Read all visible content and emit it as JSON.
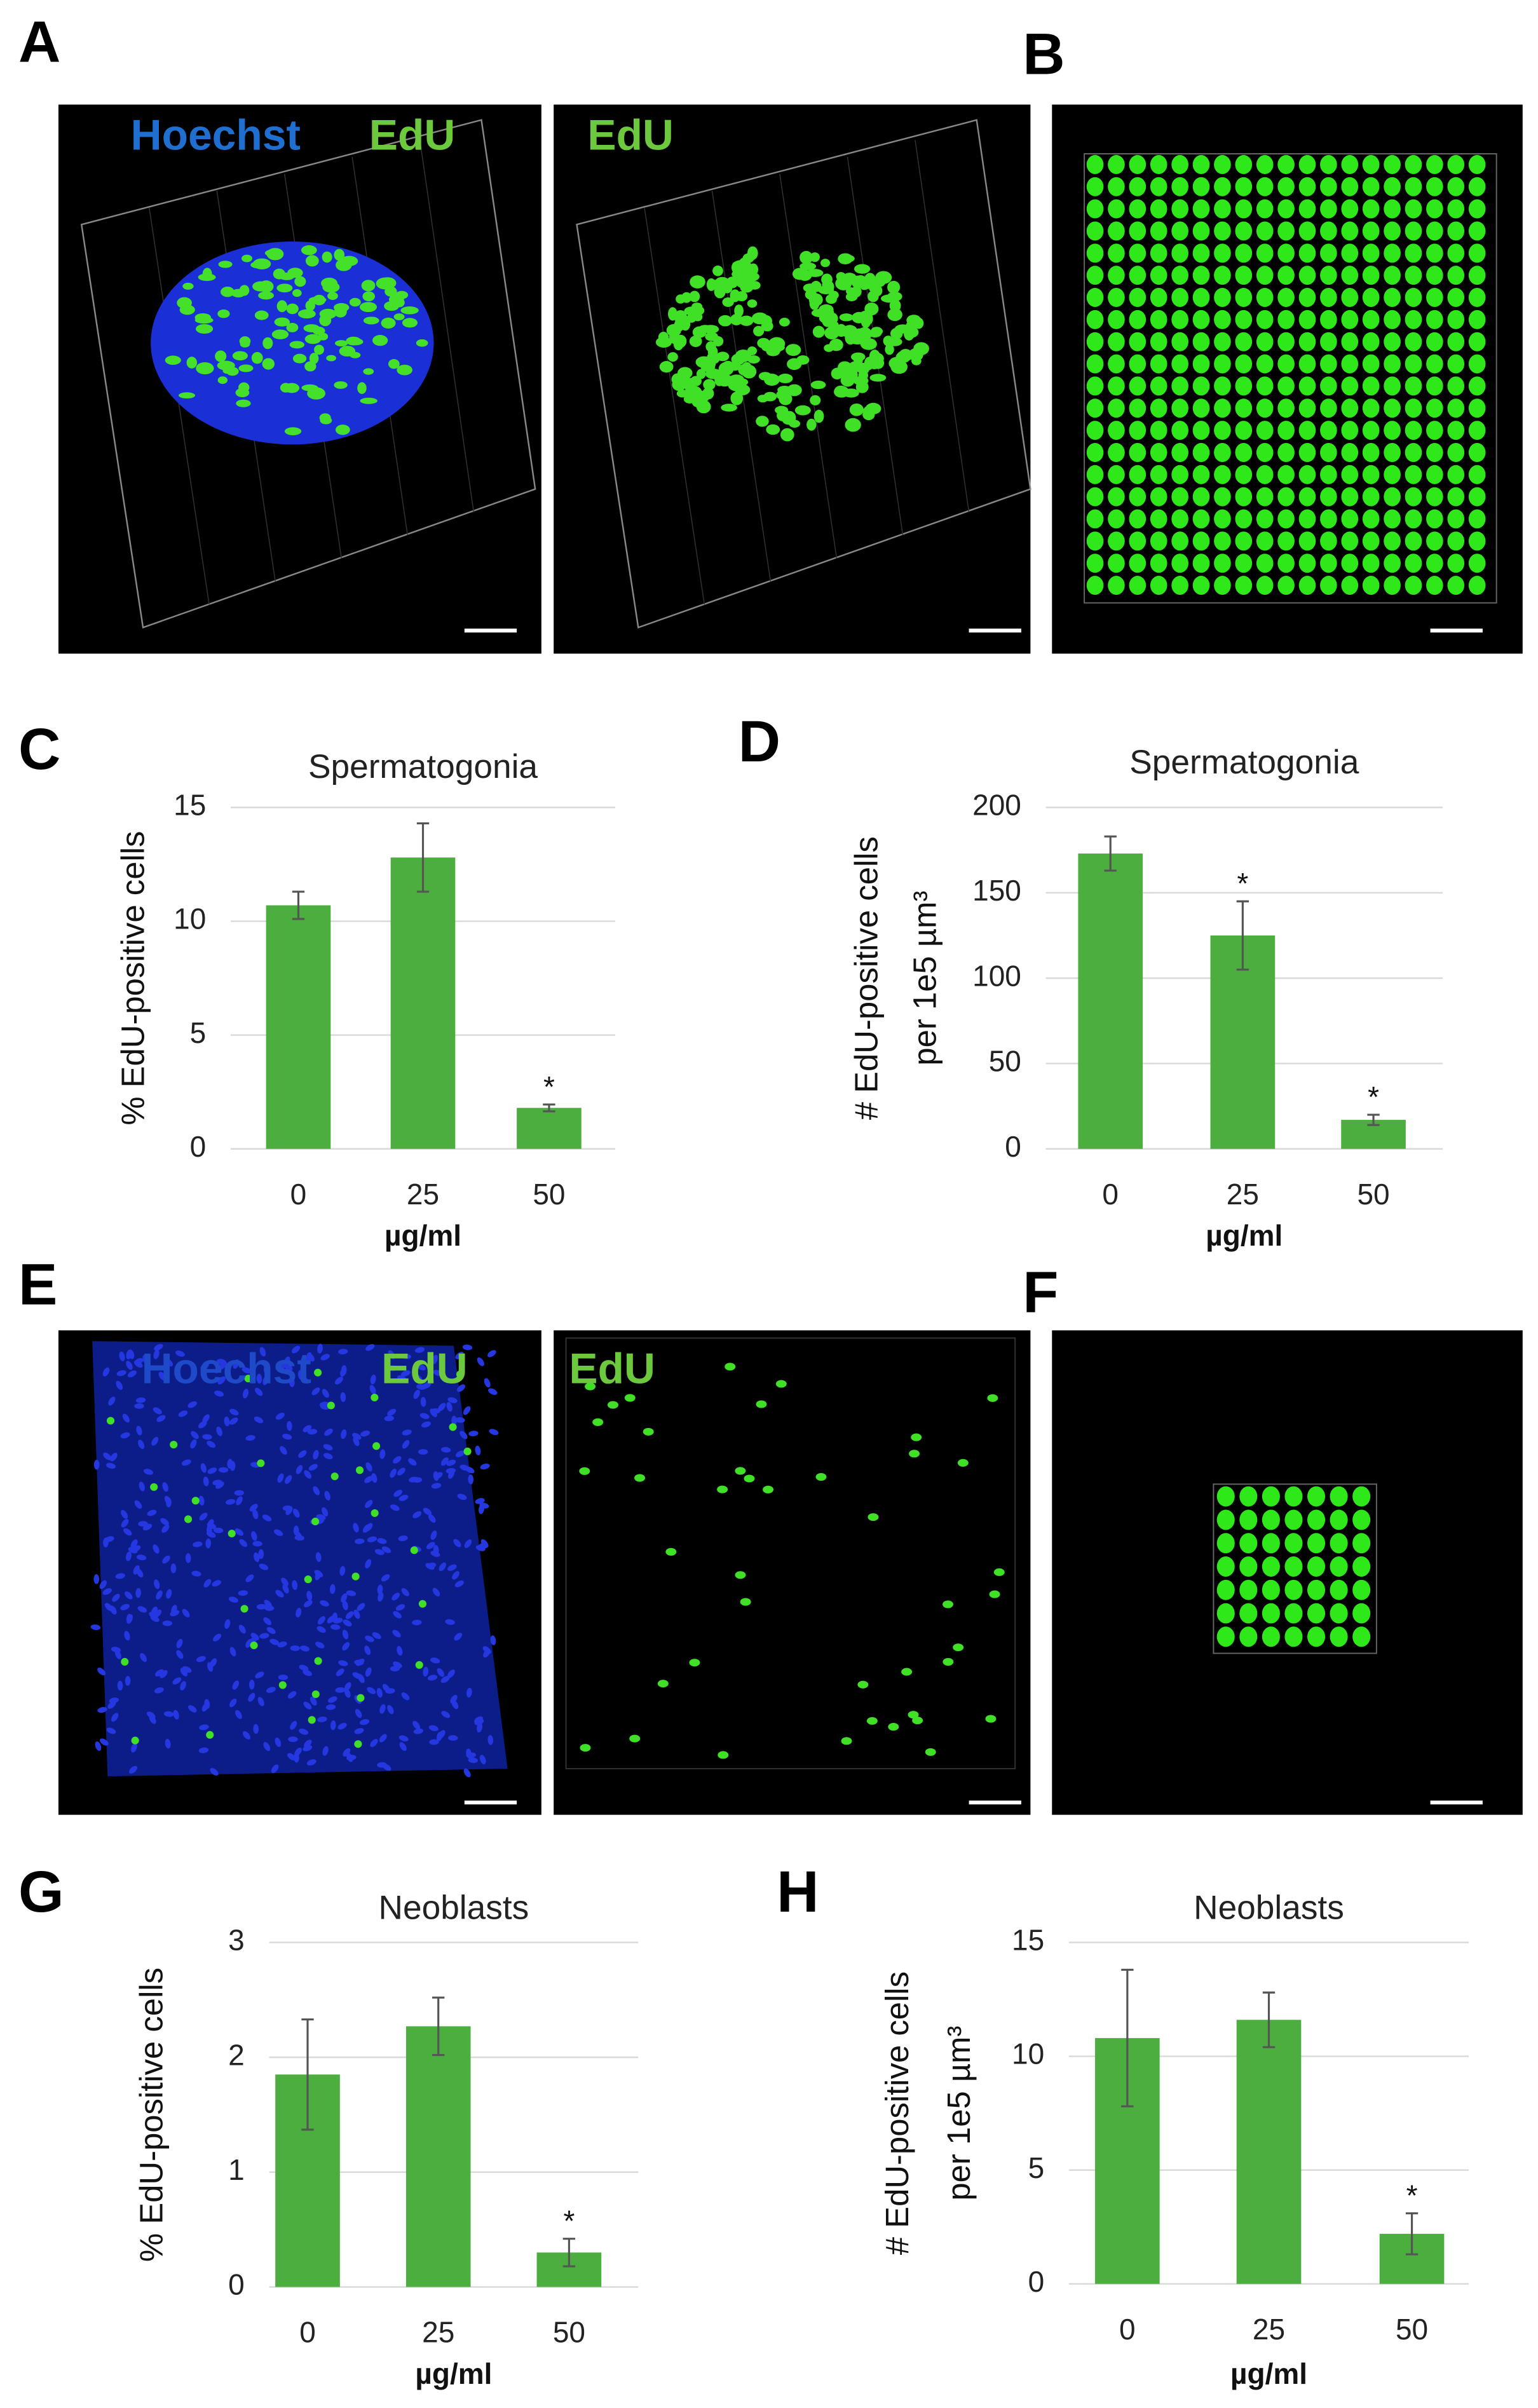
{
  "panel_letters": [
    "A",
    "B",
    "C",
    "D",
    "E",
    "F",
    "G",
    "H"
  ],
  "image_labels": [
    "Hoechst",
    "EdU",
    "EdU",
    "Hoechst",
    "EdU",
    "EdU"
  ],
  "chart_data": [
    {
      "type": "bar",
      "title": "Spermatogonia",
      "y_label": [
        "% EdU-positive cells"
      ],
      "x_label": "µg/ml",
      "categories": [
        "0",
        "25",
        "50"
      ],
      "values": [
        10.7,
        12.8,
        1.8
      ],
      "errors": [
        0.6,
        1.5,
        0.15
      ],
      "markers": [
        null,
        null,
        "*"
      ],
      "color": "#4cae3e",
      "ylim": [
        0,
        15
      ],
      "yticks": [
        0,
        5,
        10,
        15
      ],
      "grid": true
    },
    {
      "type": "bar",
      "title": "Spermatogonia",
      "y_label": [
        "# EdU-positive cells",
        "per 1e5 µm³"
      ],
      "x_label": "µg/ml",
      "categories": [
        "0",
        "25",
        "50"
      ],
      "values": [
        173,
        125,
        17
      ],
      "errors": [
        10,
        20,
        3
      ],
      "markers": [
        null,
        "*",
        "*"
      ],
      "color": "#4cae3e",
      "ylim": [
        0,
        200
      ],
      "yticks": [
        0,
        50,
        100,
        150,
        200
      ],
      "grid": true
    },
    {
      "type": "bar",
      "title": "Neoblasts",
      "y_label": [
        "% EdU-positive cells"
      ],
      "x_label": "µg/ml",
      "categories": [
        "0",
        "25",
        "50"
      ],
      "values": [
        1.85,
        2.27,
        0.3
      ],
      "errors": [
        0.48,
        0.25,
        0.12
      ],
      "markers": [
        null,
        null,
        "*"
      ],
      "color": "#4cae3e",
      "ylim": [
        0,
        3
      ],
      "yticks": [
        0,
        1,
        2,
        3
      ],
      "grid": true
    },
    {
      "type": "bar",
      "title": "Neoblasts",
      "y_label": [
        "# EdU-positive cells",
        "per 1e5 µm³"
      ],
      "x_label": "µg/ml",
      "categories": [
        "0",
        "25",
        "50"
      ],
      "values": [
        10.8,
        11.6,
        2.2
      ],
      "errors": [
        3.0,
        1.2,
        0.9
      ],
      "markers": [
        null,
        null,
        "*"
      ],
      "color": "#4cae3e",
      "ylim": [
        0,
        15
      ],
      "yticks": [
        0,
        5,
        10,
        15
      ],
      "grid": true
    }
  ]
}
